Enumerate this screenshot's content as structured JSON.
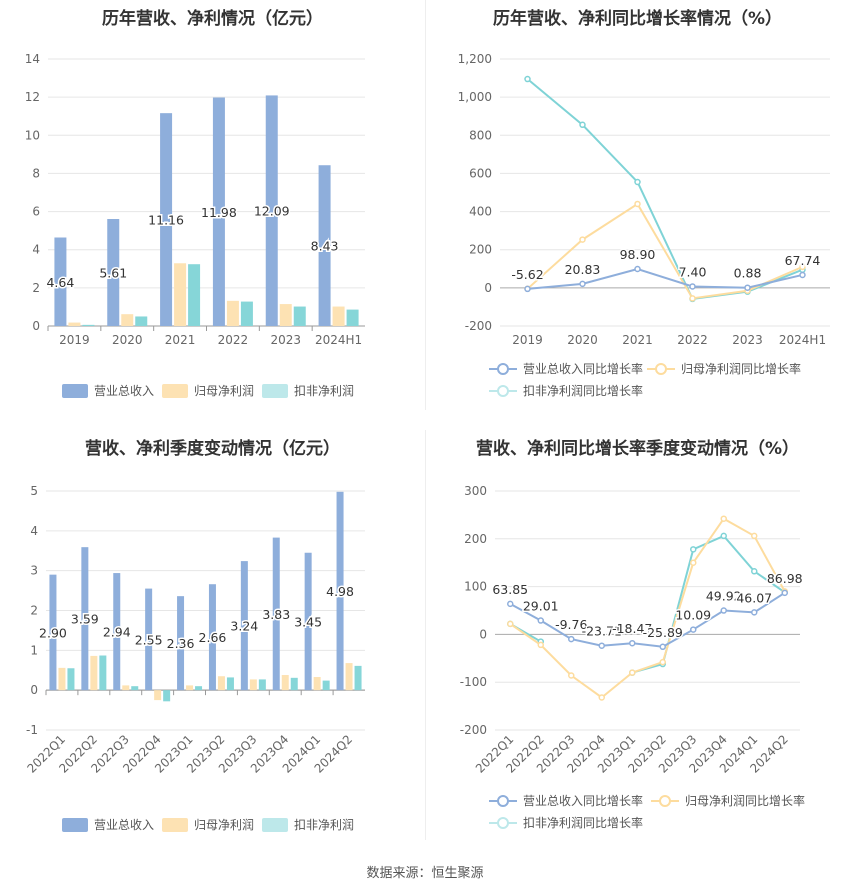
{
  "source_label": "数据来源：恒生聚源",
  "colors": {
    "revenue": "#8eaedb",
    "net_profit": "#fde2b3",
    "deducted_profit": "#86d6d8",
    "rev_line": "#8eaedb",
    "np_line": "#fddc9e",
    "dp_line": "#7fd3d6"
  },
  "charts": {
    "annual_bar": {
      "title": "历年营收、净利情况（亿元）",
      "legend": [
        "营业总收入",
        "归母净利润",
        "扣非净利润"
      ]
    },
    "annual_line": {
      "title": "历年营收、净利同比增长率情况（%）",
      "legend": [
        "营业总收入同比增长率",
        "归母净利润同比增长率",
        "扣非净利润同比增长率"
      ]
    },
    "quarter_bar": {
      "title": "营收、净利季度变动情况（亿元）",
      "legend": [
        "营业总收入",
        "归母净利润",
        "扣非净利润"
      ]
    },
    "quarter_line": {
      "title": "营收、净利同比增长率季度变动情况（%）",
      "legend": [
        "营业总收入同比增长率",
        "归母净利润同比增长率",
        "扣非净利润同比增长率"
      ]
    }
  },
  "chart_data": [
    {
      "type": "bar",
      "id": "annual_bar",
      "title": "历年营收、净利情况（亿元）",
      "categories": [
        "2019",
        "2020",
        "2021",
        "2022",
        "2023",
        "2024H1"
      ],
      "ylim": [
        0,
        14
      ],
      "yticks": [
        0,
        2,
        4,
        6,
        8,
        10,
        12,
        14
      ],
      "ytick_labels": [
        "0",
        "2",
        "4",
        "6",
        "8",
        "10",
        "12",
        "14"
      ],
      "grid": true,
      "legend_position": "bottom",
      "series": [
        {
          "name": "营业总收入",
          "values": [
            4.64,
            5.61,
            11.16,
            11.98,
            12.09,
            8.43
          ],
          "labels": [
            "4.64",
            "5.61",
            "11.16",
            "11.98",
            "12.09",
            "8.43"
          ]
        },
        {
          "name": "归母净利润",
          "values": [
            0.18,
            0.62,
            3.29,
            1.32,
            1.15,
            1.02
          ]
        },
        {
          "name": "扣非净利润",
          "values": [
            0.06,
            0.5,
            3.24,
            1.28,
            1.02,
            0.86
          ]
        }
      ]
    },
    {
      "type": "line",
      "id": "annual_line",
      "title": "历年营收、净利同比增长率情况（%）",
      "categories": [
        "2019",
        "2020",
        "2021",
        "2022",
        "2023",
        "2024H1"
      ],
      "ylim": [
        -200,
        1200
      ],
      "yticks": [
        -200,
        0,
        200,
        400,
        600,
        800,
        1000,
        1200
      ],
      "ytick_labels": [
        "-200",
        "0",
        "200",
        "400",
        "600",
        "800",
        "1,000",
        "1,200"
      ],
      "grid": true,
      "legend_position": "bottom",
      "series": [
        {
          "name": "营业总收入同比增长率",
          "values": [
            -5.62,
            20.83,
            98.9,
            7.4,
            0.88,
            67.74
          ],
          "labels": [
            "-5.62",
            "20.83",
            "98.90",
            "7.40",
            "0.88",
            "67.74"
          ]
        },
        {
          "name": "归母净利润同比增长率",
          "values": [
            -5,
            253,
            440,
            -55,
            -15,
            110
          ]
        },
        {
          "name": "扣非净利润同比增长率",
          "values": [
            1095,
            855,
            555,
            -58,
            -20,
            95
          ]
        }
      ]
    },
    {
      "type": "bar",
      "id": "quarter_bar",
      "title": "营收、净利季度变动情况（亿元）",
      "categories": [
        "2022Q1",
        "2022Q2",
        "2022Q3",
        "2022Q4",
        "2023Q1",
        "2023Q2",
        "2023Q3",
        "2023Q4",
        "2024Q1",
        "2024Q2"
      ],
      "ylim": [
        -1,
        5
      ],
      "yticks": [
        -1,
        0,
        1,
        2,
        3,
        4,
        5
      ],
      "ytick_labels": [
        "-1",
        "0",
        "1",
        "2",
        "3",
        "4",
        "5"
      ],
      "grid": true,
      "legend_position": "bottom",
      "series": [
        {
          "name": "营业总收入",
          "values": [
            2.9,
            3.59,
            2.94,
            2.55,
            2.36,
            2.66,
            3.24,
            3.83,
            3.45,
            4.98
          ],
          "labels": [
            "2.90",
            "3.59",
            "2.94",
            "2.55",
            "2.36",
            "2.66",
            "3.24",
            "3.83",
            "3.45",
            "4.98"
          ]
        },
        {
          "name": "归母净利润",
          "values": [
            0.56,
            0.86,
            0.12,
            -0.25,
            0.12,
            0.35,
            0.27,
            0.38,
            0.33,
            0.68
          ]
        },
        {
          "name": "扣非净利润",
          "values": [
            0.55,
            0.87,
            0.1,
            -0.28,
            0.1,
            0.32,
            0.27,
            0.31,
            0.24,
            0.61
          ]
        }
      ]
    },
    {
      "type": "line",
      "id": "quarter_line",
      "title": "营收、净利同比增长率季度变动情况（%）",
      "categories": [
        "2022Q1",
        "2022Q2",
        "2022Q3",
        "2022Q4",
        "2023Q1",
        "2023Q2",
        "2023Q3",
        "2023Q4",
        "2024Q1",
        "2024Q2"
      ],
      "ylim": [
        -200,
        300
      ],
      "yticks": [
        -200,
        -100,
        0,
        100,
        200,
        300
      ],
      "ytick_labels": [
        "-200",
        "-100",
        "0",
        "100",
        "200",
        "300"
      ],
      "grid": true,
      "legend_position": "bottom",
      "series": [
        {
          "name": "营业总收入同比增长率",
          "values": [
            63.85,
            29.01,
            -9.76,
            -23.71,
            -18.47,
            -25.89,
            10.09,
            49.92,
            46.07,
            86.98
          ],
          "labels": [
            "63.85",
            "29.01",
            "-9.76",
            "-23.71",
            "-18.47",
            "-25.89",
            "10.09",
            "49.92",
            "46.07",
            "86.98"
          ]
        },
        {
          "name": "归母净利润同比增长率",
          "values": [
            22,
            -22,
            -86,
            -132,
            -80,
            -58,
            150,
            242,
            206,
            90
          ]
        },
        {
          "name": "扣非净利润同比增长率",
          "values": [
            22,
            -15,
            null,
            null,
            -80,
            -62,
            178,
            206,
            132,
            88
          ]
        }
      ]
    }
  ]
}
